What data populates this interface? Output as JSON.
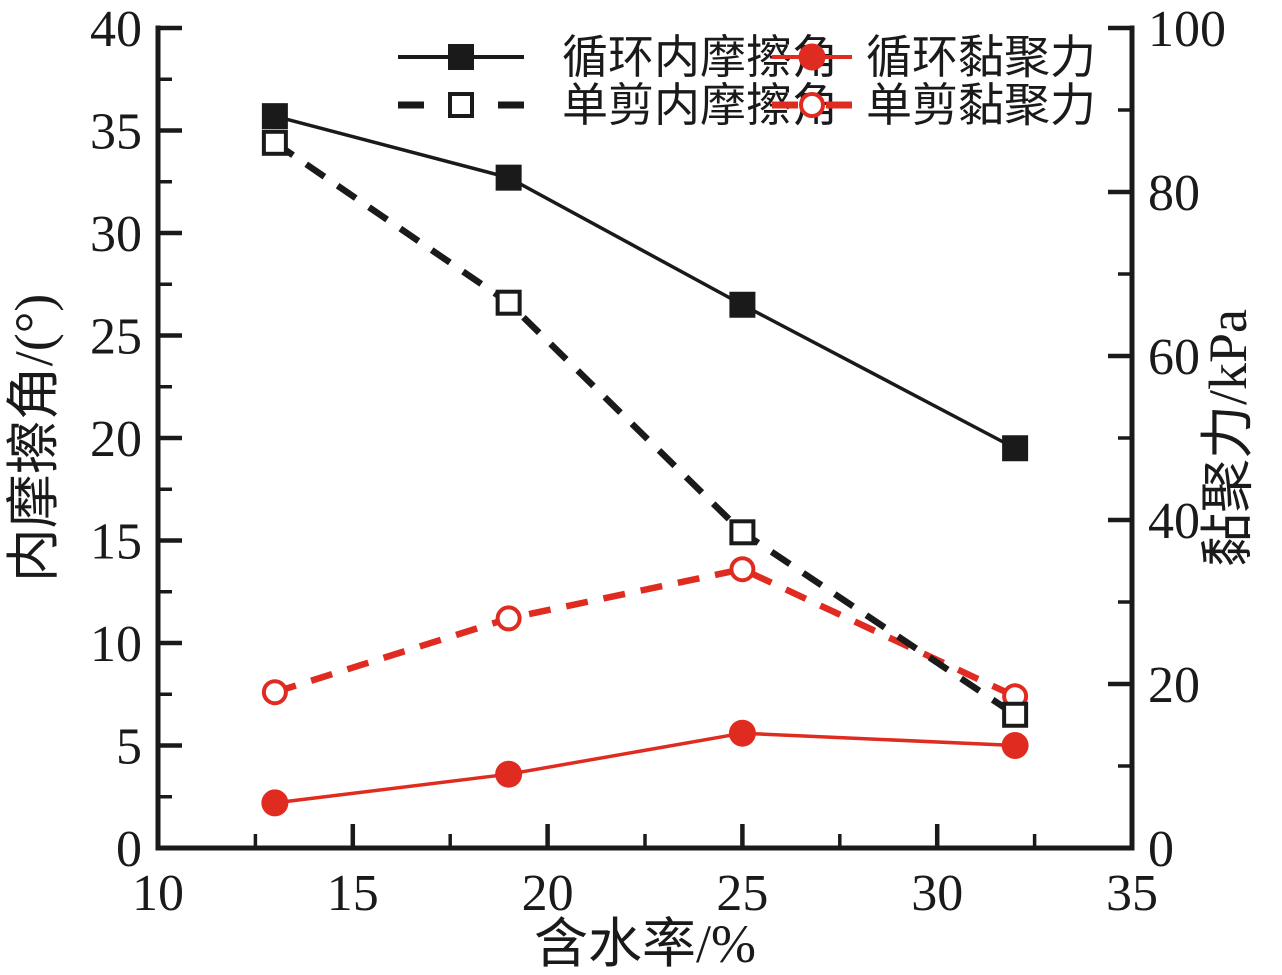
{
  "chart_data": {
    "type": "line",
    "title": "",
    "xlabel": "含水率/%",
    "ylabel_left": "内摩擦角/(°)",
    "ylabel_right": "黏聚力/kPa",
    "xlim": [
      10,
      35
    ],
    "ylim_left": [
      0,
      40
    ],
    "ylim_right": [
      0,
      100
    ],
    "x_major_ticks": [
      10,
      15,
      20,
      25,
      30,
      35
    ],
    "x_minor_step": 2.5,
    "y_left_major_ticks": [
      0,
      5,
      10,
      15,
      20,
      25,
      30,
      35,
      40
    ],
    "y_left_minor_step": 2.5,
    "y_right_major_ticks": [
      0,
      20,
      40,
      60,
      80,
      100
    ],
    "y_right_minor_step": 10,
    "grid": "off",
    "legend_position": "top-center",
    "x": [
      13,
      19,
      25,
      32
    ],
    "series": [
      {
        "id": "cyclic-friction-angle",
        "name": "循环内摩擦角",
        "axis": "left",
        "unit": "°",
        "color": "#1a1a1a",
        "line_style": "solid",
        "marker": "filled-square",
        "values": [
          35.7,
          32.7,
          26.5,
          19.5
        ]
      },
      {
        "id": "single-shear-friction-angle",
        "name": "单剪内摩擦角",
        "axis": "left",
        "unit": "°",
        "color": "#1a1a1a",
        "line_style": "dashed",
        "marker": "open-square",
        "values": [
          34.4,
          26.6,
          15.4,
          6.5
        ]
      },
      {
        "id": "cyclic-cohesion",
        "name": "循环黏聚力",
        "axis": "right",
        "unit": "kPa",
        "color": "#e02b20",
        "line_style": "solid",
        "marker": "filled-circle",
        "values": [
          5.5,
          9,
          14,
          12.5
        ]
      },
      {
        "id": "single-shear-cohesion",
        "name": "单剪黏聚力",
        "axis": "right",
        "unit": "kPa",
        "color": "#e02b20",
        "line_style": "dashed",
        "marker": "open-circle",
        "values": [
          19,
          28,
          34,
          18.5
        ]
      }
    ],
    "colors": {
      "black": "#1a1a1a",
      "red": "#e02b20",
      "background": "#ffffff"
    }
  }
}
